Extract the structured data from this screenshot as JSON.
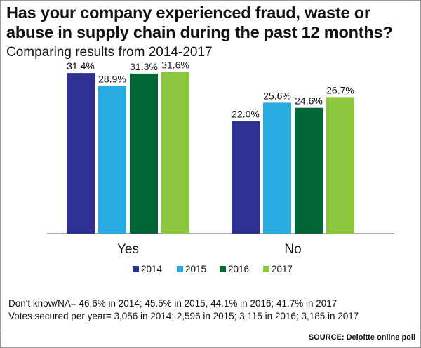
{
  "title": "Has your company experienced fraud, waste or abuse in supply chain during the past 12 months?",
  "subtitle": "Comparing results from 2014-2017",
  "notes": {
    "line1": "Don't know/NA= 46.6% in 2014; 45.5% in 2015, 44.1% in 2016; 41.7% in 2017",
    "line2": "Votes secured per year= 3,056 in 2014; 2,596 in 2015; 3,115 in 2016; 3,185 in 2017"
  },
  "source": "SOURCE: Deloitte online poll",
  "chart_data": {
    "type": "bar",
    "title": "Has your company experienced fraud, waste or abuse in supply chain during the past 12 months?",
    "subtitle": "Comparing results from 2014-2017",
    "categories": [
      "Yes",
      "No"
    ],
    "series": [
      {
        "name": "2014",
        "color": "#2e3192",
        "values": [
          31.4,
          22.0
        ],
        "labels": [
          "31.4%",
          "22.0%"
        ]
      },
      {
        "name": "2015",
        "color": "#29abe2",
        "values": [
          28.9,
          25.6
        ],
        "labels": [
          "28.9%",
          "25.6%"
        ]
      },
      {
        "name": "2016",
        "color": "#006837",
        "values": [
          31.3,
          24.6
        ],
        "labels": [
          "31.3%",
          "24.6%"
        ]
      },
      {
        "name": "2017",
        "color": "#8dc63f",
        "values": [
          31.6,
          26.7
        ],
        "labels": [
          "31.6%",
          "26.7%"
        ]
      }
    ],
    "ylim": [
      0,
      45
    ],
    "grid": false,
    "legend": "bottom-center",
    "xlabel": "",
    "ylabel": ""
  }
}
